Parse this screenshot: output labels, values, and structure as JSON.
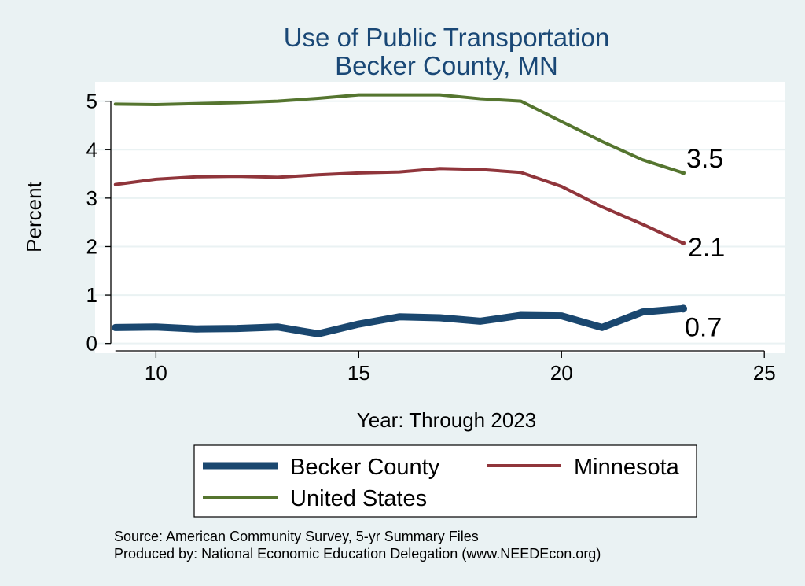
{
  "chart_data": {
    "type": "line",
    "title": "Use of Public Transportation",
    "subtitle": "Becker County, MN",
    "xlabel": "Year: Through 2023",
    "ylabel": "Percent",
    "xlim": [
      8.5,
      25.5
    ],
    "ylim": [
      -0.2,
      5.4
    ],
    "xticks": [
      10,
      15,
      20,
      25
    ],
    "yticks": [
      0,
      1,
      2,
      3,
      4,
      5
    ],
    "grid": true,
    "legend_position": "bottom",
    "x": [
      9,
      10,
      11,
      12,
      13,
      14,
      15,
      16,
      17,
      18,
      19,
      20,
      21,
      22,
      23
    ],
    "series": [
      {
        "name": "Becker County",
        "color": "#1a476f",
        "values": [
          0.33,
          0.34,
          0.3,
          0.31,
          0.34,
          0.2,
          0.4,
          0.55,
          0.53,
          0.46,
          0.58,
          0.57,
          0.33,
          0.65,
          0.72
        ],
        "end_label": "0.7"
      },
      {
        "name": "Minnesota",
        "color": "#90353b",
        "values": [
          3.28,
          3.39,
          3.44,
          3.45,
          3.43,
          3.48,
          3.52,
          3.54,
          3.61,
          3.59,
          3.53,
          3.24,
          2.82,
          2.46,
          2.07
        ],
        "end_label": "2.1"
      },
      {
        "name": "United States",
        "color": "#55752f",
        "values": [
          4.94,
          4.93,
          4.95,
          4.97,
          5.0,
          5.06,
          5.13,
          5.13,
          5.13,
          5.05,
          5.0,
          4.58,
          4.17,
          3.79,
          3.52
        ],
        "end_label": "3.5"
      }
    ],
    "notes": [
      "Source: American Community Survey, 5-yr Summary Files",
      "Produced by: National Economic Education Delegation (www.NEEDEcon.org)"
    ]
  }
}
